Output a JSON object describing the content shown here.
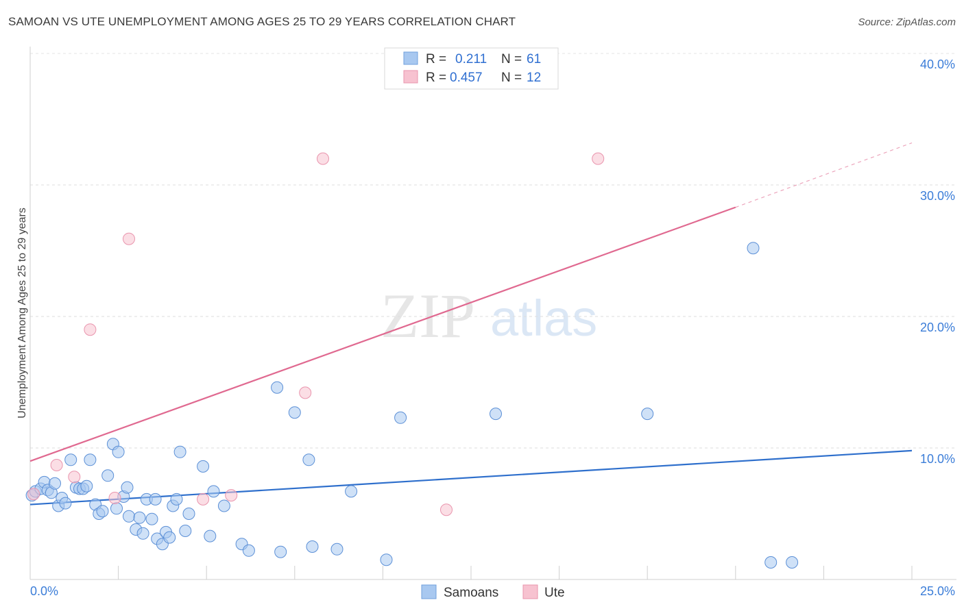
{
  "title": "SAMOAN VS UTE UNEMPLOYMENT AMONG AGES 25 TO 29 YEARS CORRELATION CHART",
  "source": "Source: ZipAtlas.com",
  "watermark": {
    "zip": "ZIP",
    "atlas": "atlas"
  },
  "chart_data": {
    "type": "scatter",
    "title": "SAMOAN VS UTE UNEMPLOYMENT AMONG AGES 25 TO 29 YEARS CORRELATION CHART",
    "xlabel": "",
    "ylabel": "Unemployment Among Ages 25 to 29 years",
    "xlim": [
      0,
      25
    ],
    "ylim": [
      0,
      40
    ],
    "x_tick_labels": {
      "left": "0.0%",
      "right": "25.0%"
    },
    "y_ticks": [
      {
        "value": 10,
        "label": "10.0%"
      },
      {
        "value": 20,
        "label": "20.0%"
      },
      {
        "value": 30,
        "label": "30.0%"
      },
      {
        "value": 40,
        "label": "40.0%"
      }
    ],
    "grid": true,
    "legend_top": [
      {
        "r_label": "R =",
        "r_value": "0.211",
        "n_label": "N =",
        "n_value": "61",
        "color": "#a8c8f0",
        "stroke": "#6f9fdc"
      },
      {
        "r_label": "R =",
        "r_value": "0.457",
        "n_label": "N =",
        "n_value": "12",
        "color": "#f7c2d0",
        "stroke": "#e994ad"
      }
    ],
    "series": [
      {
        "name": "Samoans",
        "color": "#a8c8f0",
        "stroke": "#5b8fd6",
        "line_color": "#2e6fcc",
        "trend": {
          "x0": 0,
          "y0": 5.7,
          "x1": 25,
          "y1": 9.8
        },
        "points": [
          [
            0.05,
            6.4
          ],
          [
            0.15,
            6.7
          ],
          [
            0.3,
            6.9
          ],
          [
            0.4,
            7.4
          ],
          [
            0.5,
            6.8
          ],
          [
            0.6,
            6.6
          ],
          [
            0.7,
            7.3
          ],
          [
            0.8,
            5.6
          ],
          [
            0.9,
            6.2
          ],
          [
            1.0,
            5.8
          ],
          [
            1.15,
            9.1
          ],
          [
            1.3,
            7.0
          ],
          [
            1.4,
            6.9
          ],
          [
            1.5,
            6.9
          ],
          [
            1.6,
            7.1
          ],
          [
            1.7,
            9.1
          ],
          [
            1.85,
            5.7
          ],
          [
            1.95,
            5.0
          ],
          [
            2.05,
            5.2
          ],
          [
            2.2,
            7.9
          ],
          [
            2.35,
            10.3
          ],
          [
            2.45,
            5.4
          ],
          [
            2.5,
            9.7
          ],
          [
            2.65,
            6.3
          ],
          [
            2.75,
            7.0
          ],
          [
            2.8,
            4.8
          ],
          [
            3.0,
            3.8
          ],
          [
            3.1,
            4.7
          ],
          [
            3.2,
            3.5
          ],
          [
            3.3,
            6.1
          ],
          [
            3.45,
            4.6
          ],
          [
            3.55,
            6.1
          ],
          [
            3.6,
            3.1
          ],
          [
            3.75,
            2.7
          ],
          [
            3.85,
            3.6
          ],
          [
            3.95,
            3.2
          ],
          [
            4.05,
            5.6
          ],
          [
            4.15,
            6.1
          ],
          [
            4.25,
            9.7
          ],
          [
            4.4,
            3.7
          ],
          [
            4.5,
            5.0
          ],
          [
            4.9,
            8.6
          ],
          [
            5.1,
            3.3
          ],
          [
            5.2,
            6.7
          ],
          [
            5.5,
            5.6
          ],
          [
            6.0,
            2.7
          ],
          [
            6.2,
            2.2
          ],
          [
            7.0,
            14.6
          ],
          [
            7.1,
            2.1
          ],
          [
            7.5,
            12.7
          ],
          [
            7.9,
            9.1
          ],
          [
            8.0,
            2.5
          ],
          [
            8.7,
            2.3
          ],
          [
            9.1,
            6.7
          ],
          [
            10.1,
            1.5
          ],
          [
            10.5,
            12.3
          ],
          [
            13.2,
            12.6
          ],
          [
            17.5,
            12.6
          ],
          [
            20.5,
            25.2
          ],
          [
            21.0,
            1.3
          ],
          [
            21.6,
            1.3
          ]
        ]
      },
      {
        "name": "Ute",
        "color": "#f7c2d0",
        "stroke": "#e994ad",
        "line_color": "#e06990",
        "trend": {
          "x0": 0,
          "y0": 9.0,
          "x1": 20.0,
          "y1": 28.3
        },
        "trend_dashed_to": {
          "x": 25,
          "y": 33.2
        },
        "points": [
          [
            0.1,
            6.5
          ],
          [
            0.75,
            8.7
          ],
          [
            1.25,
            7.8
          ],
          [
            1.7,
            19.0
          ],
          [
            2.4,
            6.2
          ],
          [
            2.8,
            25.9
          ],
          [
            4.9,
            6.1
          ],
          [
            5.7,
            6.4
          ],
          [
            7.8,
            14.2
          ],
          [
            8.3,
            32.0
          ],
          [
            11.8,
            5.3
          ],
          [
            16.1,
            32.0
          ]
        ]
      }
    ]
  },
  "bottom_legend": [
    {
      "label": "Samoans",
      "color": "#a8c8f0",
      "stroke": "#6f9fdc"
    },
    {
      "label": "Ute",
      "color": "#f7c2d0",
      "stroke": "#e994ad"
    }
  ]
}
